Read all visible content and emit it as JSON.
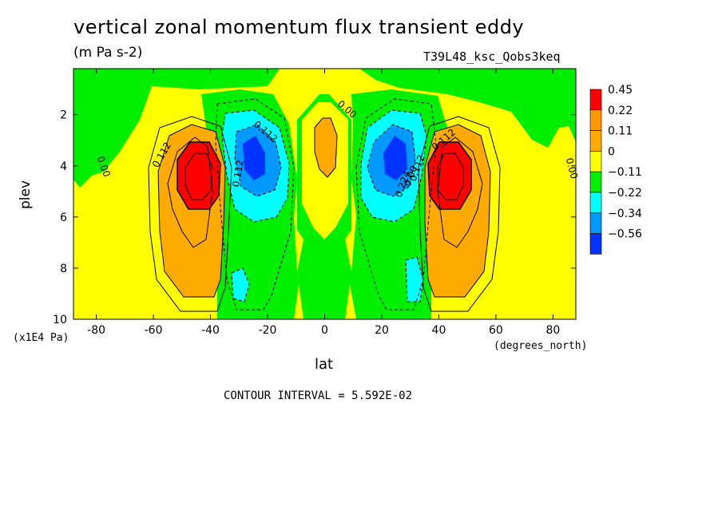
{
  "chart_data": {
    "type": "contour",
    "title": "vertical zonal momentum flux transient eddy",
    "units": "(m Pa s-2)",
    "run_label": "T39L48_ksc_Qobs3keq",
    "xlabel": "lat",
    "x_units": "(degrees_north)",
    "ylabel": "plev",
    "y_units": "(x1E4 Pa)",
    "xlim": [
      -88,
      88
    ],
    "ylim": [
      10,
      0.2
    ],
    "x_ticks": [
      "-80",
      "-60",
      "-40",
      "-20",
      "0",
      "20",
      "40",
      "60",
      "80"
    ],
    "y_ticks": [
      "2",
      "4",
      "6",
      "8",
      "10"
    ],
    "contour_interval": "CONTOUR INTERVAL = 5.592E-02",
    "legend": {
      "levels": [
        "0.45",
        "0.22",
        "0.11",
        "0",
        "−0.11",
        "−0.22",
        "−0.34",
        "−0.56"
      ],
      "colors": [
        "#ff0000",
        "#ff9900",
        "#ffaa00",
        "#ffff00",
        "#00ee00",
        "#00ffff",
        "#0099ff",
        "#0033ff"
      ]
    },
    "contour_labels": [
      "0.112",
      "0.00",
      "0.112",
      "0.00",
      "0.112",
      "0.224",
      "0.00",
      "0.112",
      "0.112",
      "0.00"
    ],
    "features": [
      {
        "kind": "max",
        "lat": -45,
        "plev": 4.0,
        "value": 0.45
      },
      {
        "kind": "max",
        "lat": 45,
        "plev": 4.0,
        "value": 0.45
      },
      {
        "kind": "min",
        "lat": -27,
        "plev": 3.5,
        "value": -0.56
      },
      {
        "kind": "min",
        "lat": 27,
        "plev": 3.5,
        "value": -0.56
      },
      {
        "kind": "max",
        "lat": 0,
        "plev": 3.5,
        "value": 0.22
      }
    ]
  }
}
